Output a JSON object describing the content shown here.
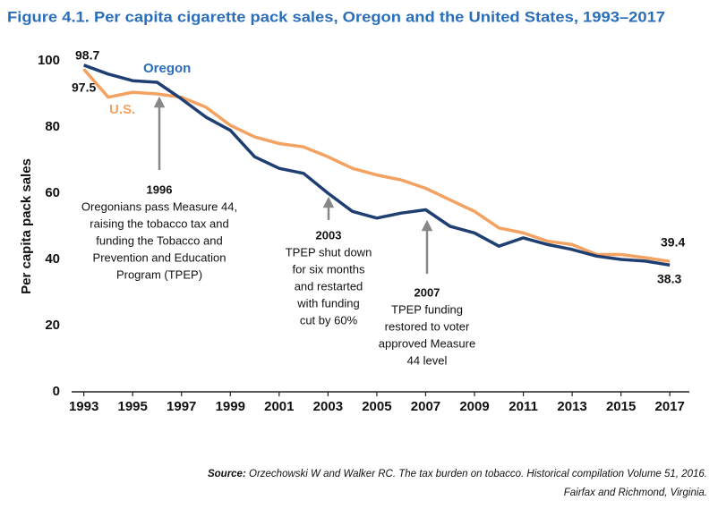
{
  "chart_data": {
    "type": "line",
    "title": "Figure 4.1. Per capita cigarette pack sales, Oregon and the United States, 1993–2017",
    "y_label": "Per capita pack sales",
    "x": [
      1993,
      1994,
      1995,
      1996,
      1997,
      1998,
      1999,
      2000,
      2001,
      2002,
      2003,
      2004,
      2005,
      2006,
      2007,
      2008,
      2009,
      2010,
      2011,
      2012,
      2013,
      2014,
      2015,
      2016,
      2017
    ],
    "series": [
      {
        "name": "Oregon",
        "color": "#1f3f73",
        "values": [
          98.7,
          96,
          94,
          93.5,
          88.5,
          83,
          79,
          71,
          67.5,
          66,
          60,
          54.5,
          52.5,
          54,
          55,
          50,
          48,
          44,
          46.5,
          44.5,
          43,
          41,
          40,
          39.5,
          38.3
        ]
      },
      {
        "name": "U.S.",
        "color": "#f4a261",
        "values": [
          97.5,
          89,
          90.5,
          90,
          89,
          86,
          80.5,
          77,
          75,
          74,
          71,
          67.5,
          65.5,
          64,
          61.5,
          58,
          54.5,
          49.5,
          48,
          45.5,
          44.5,
          41.5,
          41.5,
          40.5,
          39.4
        ]
      }
    ],
    "xlim": [
      1992.5,
      2017.8
    ],
    "xticks": [
      1993,
      1995,
      1997,
      1999,
      2001,
      2003,
      2005,
      2007,
      2009,
      2011,
      2013,
      2015,
      2017
    ],
    "ylim": [
      0,
      100
    ],
    "yticks": [
      0,
      20,
      40,
      60,
      80,
      100
    ],
    "grid": false,
    "annotations": [
      {
        "heading": "1996",
        "lines": [
          "Oregonians pass Measure 44,",
          "raising the tobacco tax and",
          "funding the Tobacco and",
          "Prevention and Education",
          "Program (TPEP)"
        ]
      },
      {
        "heading": "2003",
        "lines": [
          "TPEP shut down",
          "for six months",
          "and restarted",
          "with funding",
          "cut by 60%"
        ]
      },
      {
        "heading": "2007",
        "lines": [
          "TPEP funding",
          "restored to voter",
          "approved Measure",
          "44 level"
        ]
      }
    ],
    "source": {
      "label": "Source:",
      "lines": [
        "Orzechowski W and Walker RC. The tax burden on tobacco. Historical compilation Volume 51, 2016.",
        "Fairfax and Richmond, Virginia."
      ]
    }
  }
}
